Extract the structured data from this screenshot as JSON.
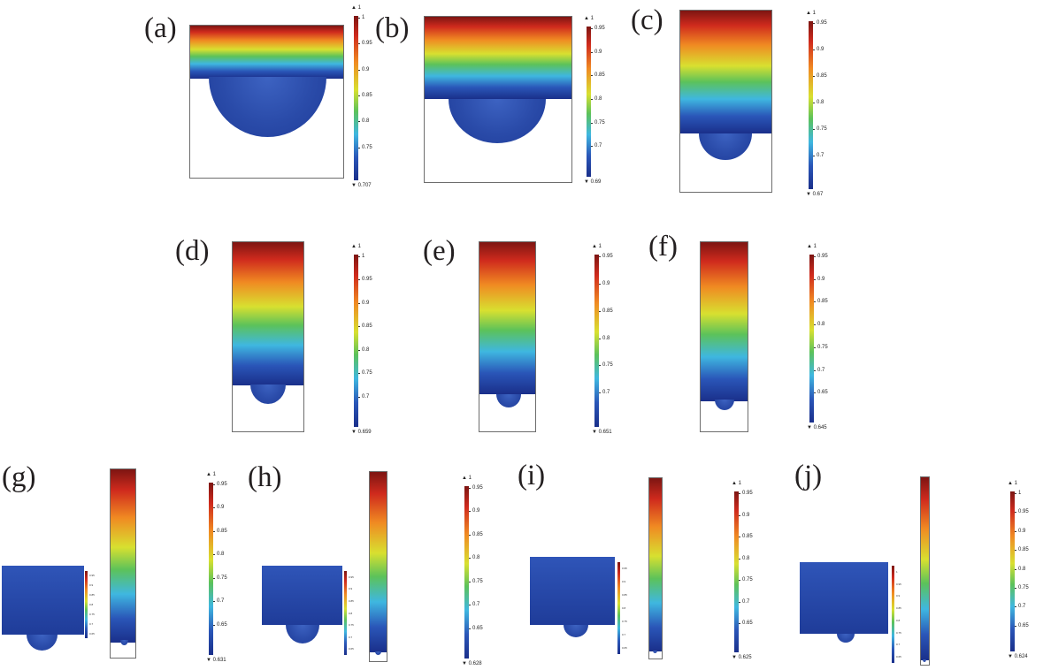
{
  "colors": {
    "top": "#7d1512",
    "red": "#cf2a1d",
    "orange": "#f08a22",
    "yellow": "#d8e030",
    "green": "#5cc25a",
    "cyan": "#3fb7e0",
    "blue": "#2a56b8",
    "navy": "#1a2f8a"
  },
  "panels": [
    {
      "label": "(a)",
      "max": "▲ 1",
      "min": "▼ 0.707",
      "ticks": [
        "1",
        "0.95",
        "0.9",
        "0.85",
        "0.8",
        "0.75"
      ]
    },
    {
      "label": "(b)",
      "max": "▲ 1",
      "min": "▼ 0.69",
      "ticks": [
        "0.95",
        "0.9",
        "0.85",
        "0.8",
        "0.75",
        "0.7"
      ]
    },
    {
      "label": "(c)",
      "max": "▲ 1",
      "min": "▼ 0.67",
      "ticks": [
        "0.95",
        "0.9",
        "0.85",
        "0.8",
        "0.75",
        "0.7"
      ]
    },
    {
      "label": "(d)",
      "max": "▲ 1",
      "min": "▼ 0.659",
      "ticks": [
        "1",
        "0.95",
        "0.9",
        "0.85",
        "0.8",
        "0.75",
        "0.7"
      ]
    },
    {
      "label": "(e)",
      "max": "▲ 1",
      "min": "▼ 0.651",
      "ticks": [
        "0.95",
        "0.9",
        "0.85",
        "0.8",
        "0.75",
        "0.7"
      ]
    },
    {
      "label": "(f)",
      "max": "▲ 1",
      "min": "▼ 0.645",
      "ticks": [
        "0.95",
        "0.9",
        "0.85",
        "0.8",
        "0.75",
        "0.7",
        "0.65"
      ]
    },
    {
      "label": "(g)",
      "max": "▲ 1",
      "min": "▼ 0.631",
      "ticks": [
        "0.95",
        "0.9",
        "0.85",
        "0.8",
        "0.75",
        "0.7",
        "0.65"
      ]
    },
    {
      "label": "(h)",
      "max": "▲ 1",
      "min": "▼ 0.628",
      "ticks": [
        "0.95",
        "0.9",
        "0.85",
        "0.8",
        "0.75",
        "0.7",
        "0.65"
      ]
    },
    {
      "label": "(i)",
      "max": "▲ 1",
      "min": "▼ 0.625",
      "ticks": [
        "0.95",
        "0.9",
        "0.85",
        "0.8",
        "0.75",
        "0.7",
        "0.65"
      ]
    },
    {
      "label": "(j)",
      "max": "▲ 1",
      "min": "▼ 0.624",
      "ticks": [
        "1",
        "0.95",
        "0.9",
        "0.85",
        "0.8",
        "0.75",
        "0.7",
        "0.65"
      ]
    }
  ]
}
